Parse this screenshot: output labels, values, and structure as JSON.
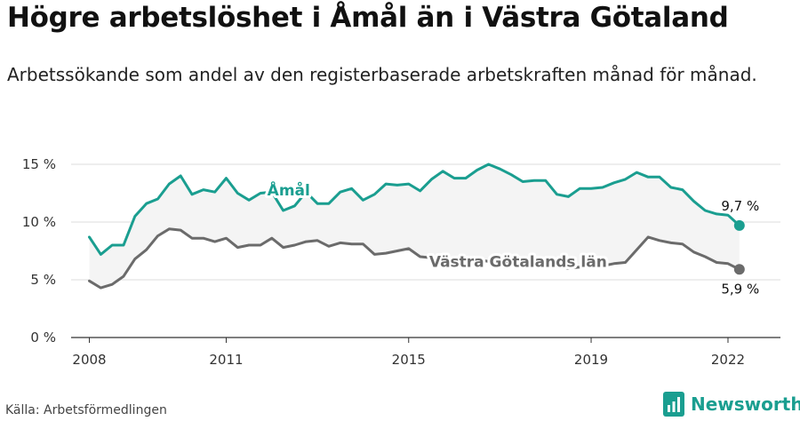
{
  "title": "Högre arbetslöshet i Åmål än i Västra Götaland",
  "subtitle": "Arbetssökande som andel av den registerbaserade arbetskraften månad för månad.",
  "source": "Källa: Arbetsförmedlingen",
  "brand": {
    "name": "Newsworthy",
    "icon": "newsworthy-bar-chart-logo"
  },
  "colors": {
    "amal": "#1a9e90",
    "vg": "#6b6b6b",
    "band": "#f4f4f4",
    "grid": "#dddddd"
  },
  "chart_data": {
    "type": "line",
    "xlabel": "",
    "ylabel": "",
    "x_ticks": [
      "2008",
      "2011",
      "2015",
      "2019",
      "2022"
    ],
    "y_ticks": [
      "0 %",
      "5 %",
      "10 %",
      "15 %"
    ],
    "ylim": [
      0,
      15.5
    ],
    "grid": true,
    "x_range": [
      2007.6,
      2023.15
    ],
    "labels": {
      "amal_name": "Åmål",
      "vg_name": "Västra Götalands län",
      "amal_last": "9,7 %",
      "vg_last": "5,9 %"
    },
    "series": [
      {
        "name": "Åmål",
        "x": [
          2008.0,
          2008.25,
          2008.5,
          2008.75,
          2009.0,
          2009.25,
          2009.5,
          2009.75,
          2010.0,
          2010.25,
          2010.5,
          2010.75,
          2011.0,
          2011.25,
          2011.5,
          2011.75,
          2012.0,
          2012.25,
          2012.5,
          2012.75,
          2013.0,
          2013.25,
          2013.5,
          2013.75,
          2014.0,
          2014.25,
          2014.5,
          2014.75,
          2015.0,
          2015.25,
          2015.5,
          2015.75,
          2016.0,
          2016.25,
          2016.5,
          2016.75,
          2017.0,
          2017.25,
          2017.5,
          2017.75,
          2018.0,
          2018.25,
          2018.5,
          2018.75,
          2019.0,
          2019.25,
          2019.5,
          2019.75,
          2020.0,
          2020.25,
          2020.5,
          2020.75,
          2021.0,
          2021.25,
          2021.5,
          2021.75,
          2022.0,
          2022.25
        ],
        "values": [
          8.7,
          7.2,
          8.0,
          8.0,
          10.5,
          11.6,
          12.0,
          13.3,
          14.0,
          12.4,
          12.8,
          12.6,
          13.8,
          12.5,
          11.9,
          12.5,
          12.6,
          11.0,
          11.4,
          12.6,
          11.6,
          11.6,
          12.6,
          12.9,
          11.9,
          12.4,
          13.3,
          13.2,
          13.3,
          12.7,
          13.7,
          14.4,
          13.8,
          13.8,
          14.5,
          15.0,
          14.6,
          14.1,
          13.5,
          13.6,
          13.6,
          12.4,
          12.2,
          12.9,
          12.9,
          13.0,
          13.4,
          13.7,
          14.3,
          13.9,
          13.9,
          13.0,
          12.8,
          11.8,
          11.0,
          10.7,
          10.6,
          9.7
        ]
      },
      {
        "name": "Västra Götalands län",
        "x": [
          2008.0,
          2008.25,
          2008.5,
          2008.75,
          2009.0,
          2009.25,
          2009.5,
          2009.75,
          2010.0,
          2010.25,
          2010.5,
          2010.75,
          2011.0,
          2011.25,
          2011.5,
          2011.75,
          2012.0,
          2012.25,
          2012.5,
          2012.75,
          2013.0,
          2013.25,
          2013.5,
          2013.75,
          2014.0,
          2014.25,
          2014.5,
          2014.75,
          2015.0,
          2015.25,
          2015.5,
          2015.75,
          2016.0,
          2016.25,
          2016.5,
          2016.75,
          2017.0,
          2017.25,
          2017.5,
          2017.75,
          2018.0,
          2018.25,
          2018.5,
          2018.75,
          2019.0,
          2019.25,
          2019.5,
          2019.75,
          2020.0,
          2020.25,
          2020.5,
          2020.75,
          2021.0,
          2021.25,
          2021.5,
          2021.75,
          2022.0,
          2022.25
        ],
        "values": [
          4.9,
          4.3,
          4.6,
          5.3,
          6.8,
          7.6,
          8.8,
          9.4,
          9.3,
          8.6,
          8.6,
          8.3,
          8.6,
          7.8,
          8.0,
          8.0,
          8.6,
          7.8,
          8.0,
          8.3,
          8.4,
          7.9,
          8.2,
          8.1,
          8.1,
          7.2,
          7.3,
          7.5,
          7.7,
          7.0,
          6.9,
          6.8,
          6.6,
          6.6,
          6.7,
          6.6,
          6.6,
          6.5,
          6.4,
          6.4,
          6.4,
          6.1,
          6.0,
          6.1,
          6.1,
          6.2,
          6.4,
          6.5,
          7.6,
          8.7,
          8.4,
          8.2,
          8.1,
          7.4,
          7.0,
          6.5,
          6.4,
          5.9
        ]
      }
    ]
  }
}
